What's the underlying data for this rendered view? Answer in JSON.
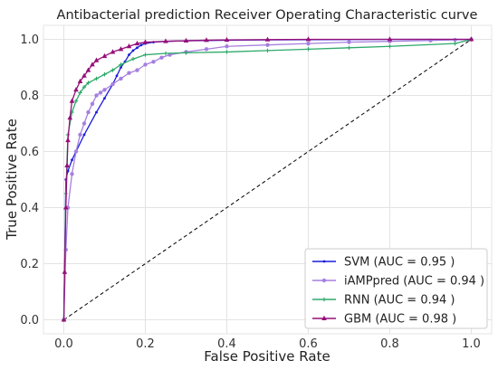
{
  "chart_data": {
    "type": "line",
    "title": "Antibacterial prediction Receiver Operating Characteristic curve",
    "xlabel": "False Positive Rate",
    "ylabel": "True Positive Rate",
    "xlim": [
      -0.05,
      1.05
    ],
    "ylim": [
      -0.05,
      1.05
    ],
    "xticks": [
      "0.0",
      "0.2",
      "0.4",
      "0.6",
      "0.8",
      "1.0"
    ],
    "yticks": [
      "0.0",
      "0.2",
      "0.4",
      "0.6",
      "0.8",
      "1.0"
    ],
    "grid": true,
    "legend_position": "bottom-right",
    "chance_line": {
      "x": [
        0,
        1
      ],
      "y": [
        0,
        1
      ],
      "color": "#000000",
      "style": "dashed"
    },
    "series": [
      {
        "name": "SVM (AUC = 0.95 )",
        "color": "#1a1adb",
        "marker": "dot",
        "x": [
          0,
          0.005,
          0.01,
          0.02,
          0.03,
          0.05,
          0.08,
          0.1,
          0.12,
          0.13,
          0.14,
          0.15,
          0.16,
          0.17,
          0.18,
          0.19,
          0.2,
          0.22,
          0.25,
          0.3,
          0.4,
          0.5,
          0.6,
          0.8,
          1.0
        ],
        "y": [
          0,
          0.5,
          0.53,
          0.57,
          0.6,
          0.66,
          0.74,
          0.79,
          0.84,
          0.87,
          0.9,
          0.92,
          0.945,
          0.96,
          0.97,
          0.98,
          0.985,
          0.99,
          0.993,
          0.995,
          0.997,
          0.998,
          0.999,
          1.0,
          1.0
        ]
      },
      {
        "name": "iAMPpred (AUC = 0.94 )",
        "color": "#a57fe0",
        "marker": "circle",
        "x": [
          0,
          0.005,
          0.01,
          0.02,
          0.03,
          0.04,
          0.05,
          0.06,
          0.07,
          0.08,
          0.09,
          0.1,
          0.12,
          0.14,
          0.16,
          0.18,
          0.2,
          0.22,
          0.24,
          0.26,
          0.3,
          0.35,
          0.4,
          0.5,
          0.6,
          0.7,
          0.8,
          0.9,
          0.96,
          1.0
        ],
        "y": [
          0,
          0.25,
          0.4,
          0.52,
          0.6,
          0.66,
          0.7,
          0.74,
          0.77,
          0.8,
          0.81,
          0.82,
          0.84,
          0.86,
          0.88,
          0.89,
          0.91,
          0.92,
          0.935,
          0.945,
          0.955,
          0.965,
          0.975,
          0.98,
          0.985,
          0.99,
          0.993,
          0.996,
          0.998,
          1.0
        ]
      },
      {
        "name": "RNN (AUC = 0.94 )",
        "color": "#2ea96a",
        "marker": "plus",
        "x": [
          0,
          0.005,
          0.01,
          0.02,
          0.03,
          0.04,
          0.05,
          0.06,
          0.08,
          0.1,
          0.12,
          0.14,
          0.17,
          0.2,
          0.25,
          0.3,
          0.4,
          0.5,
          0.6,
          0.7,
          0.8,
          0.96,
          1.0
        ],
        "y": [
          0,
          0.45,
          0.66,
          0.74,
          0.78,
          0.81,
          0.83,
          0.845,
          0.86,
          0.875,
          0.89,
          0.91,
          0.93,
          0.945,
          0.95,
          0.952,
          0.955,
          0.96,
          0.965,
          0.97,
          0.975,
          0.985,
          1.0
        ]
      },
      {
        "name": "GBM (AUC = 0.98 )",
        "color": "#960f78",
        "marker": "triangle",
        "x": [
          0,
          0.002,
          0.005,
          0.008,
          0.01,
          0.015,
          0.02,
          0.03,
          0.04,
          0.05,
          0.06,
          0.07,
          0.08,
          0.1,
          0.12,
          0.14,
          0.16,
          0.18,
          0.2,
          0.25,
          0.3,
          0.35,
          0.4,
          0.5,
          0.6,
          0.8,
          1.0
        ],
        "y": [
          0,
          0.17,
          0.4,
          0.55,
          0.64,
          0.72,
          0.78,
          0.82,
          0.85,
          0.87,
          0.89,
          0.91,
          0.925,
          0.94,
          0.955,
          0.965,
          0.975,
          0.985,
          0.99,
          0.993,
          0.995,
          0.997,
          0.998,
          0.999,
          1.0,
          1.0,
          1.0
        ]
      }
    ]
  }
}
